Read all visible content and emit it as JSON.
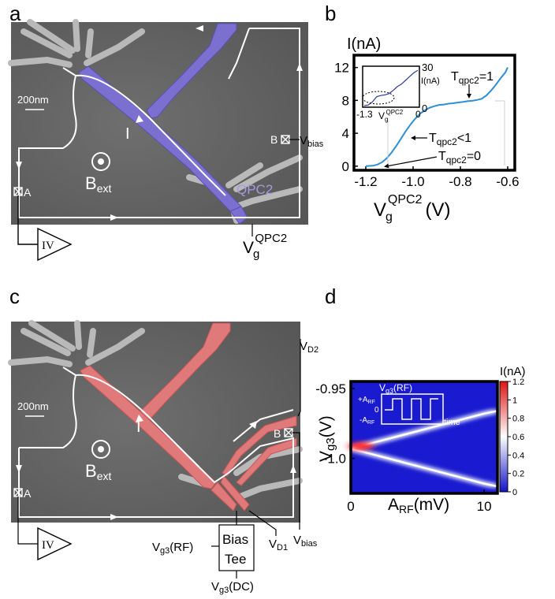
{
  "panels": {
    "a": {
      "letter": "a",
      "scale": "200nm",
      "field": "B",
      "field_sub": "ext",
      "current": "I",
      "contact_a": "A",
      "contact_b": "B",
      "vbias": "V",
      "vbias_sub": "bias",
      "qpc": "QPC2",
      "amp": "IV",
      "gate": "V",
      "gate_sub": "g",
      "gate_sup": "QPC2",
      "gate_color": "#7b70cf"
    },
    "b": {
      "letter": "b",
      "ylabel": "I(nA)",
      "xlabel_main": "V",
      "xlabel_sub": "g",
      "xlabel_sup": "QPC2",
      "xlabel_unit": "(V)",
      "ann_t1": "T",
      "ann_t1_sub": "qpc2",
      "ann_t1_val": "=1",
      "ann_tlt": "T",
      "ann_tlt_sub": "qpc2",
      "ann_tlt_val": "<1",
      "ann_t0": "T",
      "ann_t0_sub": "qpc2",
      "ann_t0_val": "=0",
      "inset_ylabel": "I(nA)",
      "inset_xlabel_main": "V",
      "inset_xlabel_sub": "g",
      "inset_xlabel_sup": "QPC2",
      "inset_xtick_left": "-1.3",
      "inset_xtick_right": "0",
      "inset_ytick_top": "30",
      "inset_ytick_bottom": "0"
    },
    "c": {
      "letter": "c",
      "scale": "200nm",
      "field": "B",
      "field_sub": "ext",
      "current": "I",
      "contact_a": "A",
      "contact_b": "B",
      "vd2": "V",
      "vd2_sub": "D2",
      "vd1": "V",
      "vd1_sub": "D1",
      "vbias": "V",
      "vbias_sub": "bias",
      "amp": "IV",
      "bias_tee_1": "Bias",
      "bias_tee_2": "Tee",
      "vg3rf": "V",
      "vg3rf_sub": "g3",
      "vg3rf_suffix": "(RF)",
      "vg3dc": "V",
      "vg3dc_sub": "g3",
      "vg3dc_suffix": "(DC)",
      "gate_color": "#e07a7a"
    },
    "d": {
      "letter": "d",
      "ylabel_main": "V",
      "ylabel_sub": "g3",
      "ylabel_unit": "(V)",
      "xlabel_main": "A",
      "xlabel_sub": "RF",
      "xlabel_unit": "(mV)",
      "cbar_label": "I(nA)",
      "cbar_ticks": [
        "1.2",
        "1",
        "0.8",
        "0.6",
        "0.4",
        "0.2",
        "0"
      ],
      "inset_title": "V",
      "inset_title_sub": "g3",
      "inset_title_suffix": "(RF)",
      "inset_plus": "+A",
      "inset_plus_sub": "RF",
      "inset_zero": "0",
      "inset_minus": "-A",
      "inset_minus_sub": "RF",
      "inset_time": "time"
    }
  },
  "chart_data": [
    {
      "type": "line",
      "panel": "b",
      "title": "",
      "xlabel": "V_g^QPC2 (V)",
      "ylabel": "I(nA)",
      "xlim": [
        -1.25,
        -0.57
      ],
      "ylim": [
        -0.5,
        13.5
      ],
      "xticks": [
        -1.2,
        -1.0,
        -0.8,
        -0.6
      ],
      "yticks": [
        0,
        4,
        8,
        12
      ],
      "series": [
        {
          "x": [
            -1.2,
            -1.17,
            -1.15,
            -1.13,
            -1.11,
            -1.09,
            -1.07,
            -1.05,
            -1.03,
            -1.01,
            -0.99,
            -0.97,
            -0.95,
            -0.93,
            -0.91,
            -0.89,
            -0.87,
            -0.85,
            -0.83,
            -0.81,
            -0.79,
            -0.77,
            -0.75,
            -0.73,
            -0.71,
            -0.69,
            -0.67,
            -0.65,
            -0.63,
            -0.61,
            -0.6
          ],
          "y": [
            0.0,
            0.05,
            0.2,
            0.5,
            1.0,
            1.7,
            2.5,
            3.4,
            4.3,
            5.1,
            5.8,
            6.4,
            6.8,
            7.1,
            7.3,
            7.45,
            7.5,
            7.6,
            7.65,
            7.75,
            7.8,
            7.9,
            7.95,
            8.05,
            8.2,
            8.6,
            9.2,
            9.9,
            10.7,
            11.4,
            12.0
          ],
          "color": "#2e8fd6"
        }
      ]
    },
    {
      "type": "line",
      "panel": "b-inset",
      "xlim": [
        -1.3,
        0
      ],
      "ylim": [
        0,
        30
      ],
      "series": [
        {
          "x": [
            -1.3,
            -1.2,
            -1.1,
            -1.0,
            -0.9,
            -0.8,
            -0.7,
            -0.6,
            -0.5,
            -0.4,
            -0.3,
            -0.2,
            -0.1,
            0.0
          ],
          "y": [
            0,
            0.5,
            3,
            7,
            8,
            8.5,
            9.5,
            12,
            15,
            17,
            20,
            23,
            26,
            28
          ],
          "color": "#2b3a9f"
        }
      ]
    },
    {
      "type": "heatmap",
      "panel": "d",
      "xlabel": "A_RF (mV)",
      "ylabel": "V_g3 (V)",
      "xlim": [
        0,
        11
      ],
      "ylim": [
        -1.025,
        -0.945
      ],
      "xticks": [
        0,
        10
      ],
      "yticks": [
        -0.95,
        -1.0
      ],
      "colorbar": {
        "label": "I(nA)",
        "range": [
          0,
          1.2
        ],
        "colors": [
          "#1b1bd6",
          "#ffffff",
          "#e02020"
        ]
      },
      "features": [
        {
          "name": "upper branch",
          "x": [
            0,
            2,
            4,
            6,
            8,
            10,
            11
          ],
          "y": [
            -0.993,
            -0.988,
            -0.983,
            -0.978,
            -0.973,
            -0.968,
            -0.966
          ]
        },
        {
          "name": "lower branch",
          "x": [
            0,
            2,
            4,
            6,
            8,
            10,
            11
          ],
          "y": [
            -0.993,
            -0.998,
            -1.003,
            -1.008,
            -1.013,
            -1.018,
            -1.02
          ]
        }
      ]
    }
  ]
}
